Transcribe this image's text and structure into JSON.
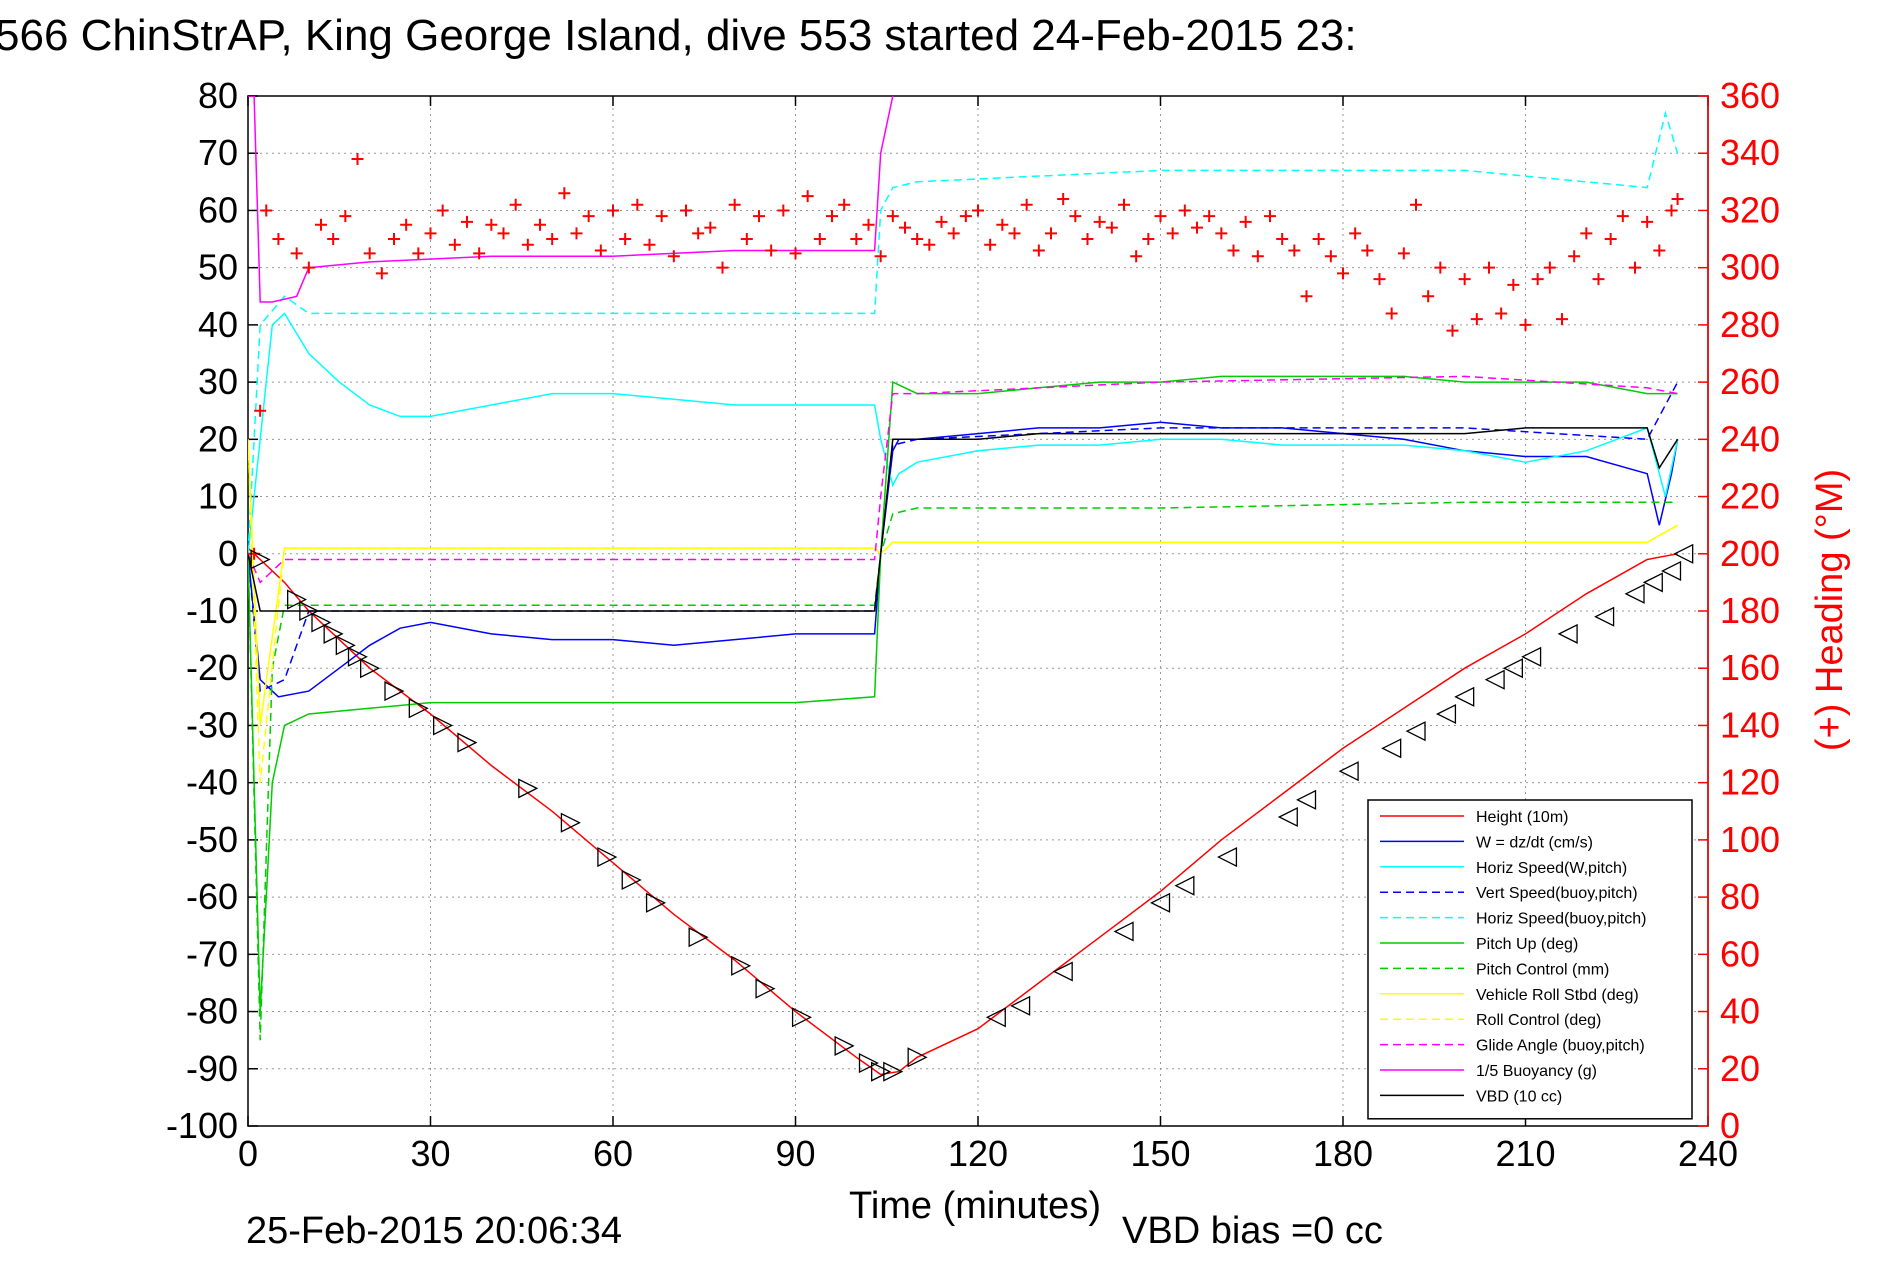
{
  "chart_data": {
    "type": "line",
    "title": "566 ChinStrAP, King George Island, dive 553 started 24-Feb-2015 23:",
    "xlabel": "Time (minutes)",
    "ylabel": "",
    "y2label": "(+) Heading (°M)",
    "xlim": [
      0,
      240
    ],
    "ylim": [
      -100,
      80
    ],
    "y2lim": [
      0,
      360
    ],
    "xticks": [
      "0",
      "30",
      "60",
      "90",
      "120",
      "150",
      "180",
      "210",
      "240"
    ],
    "yticks": [
      "80",
      "70",
      "60",
      "50",
      "40",
      "30",
      "20",
      "10",
      "0",
      "-10",
      "-20",
      "-30",
      "-40",
      "-50",
      "-60",
      "-70",
      "-80",
      "-90",
      "-100"
    ],
    "y2ticks": [
      "360",
      "340",
      "320",
      "300",
      "280",
      "260",
      "240",
      "220",
      "200",
      "180",
      "160",
      "140",
      "120",
      "100",
      "80",
      "60",
      "40",
      "20",
      "0"
    ],
    "grid": true,
    "legend_position": "bottom-right",
    "footer_left": "25-Feb-2015 20:06:34",
    "footer_right": "VBD bias =0 cc",
    "colors": {
      "red": "#ff0000",
      "blue": "#0000ff",
      "cyan": "#00ffff",
      "green": "#00cc00",
      "yellow": "#ffff00",
      "magenta": "#ff00ff",
      "black": "#000000"
    },
    "series": [
      {
        "name": "Height (10m)",
        "color": "#ff0000",
        "dash": "solid",
        "axis": "left",
        "x": [
          0,
          2,
          6,
          10,
          20,
          30,
          40,
          50,
          60,
          70,
          80,
          90,
          100,
          104,
          107,
          110,
          120,
          130,
          140,
          150,
          160,
          170,
          180,
          190,
          200,
          210,
          220,
          230,
          235
        ],
        "y": [
          1,
          -1,
          -5,
          -10,
          -20,
          -28,
          -37,
          -45,
          -54,
          -63,
          -71,
          -80,
          -88,
          -91,
          -90.5,
          -88,
          -83,
          -75,
          -67,
          -59,
          -50,
          -42,
          -34,
          -27,
          -20,
          -14,
          -7,
          -1,
          0
        ]
      },
      {
        "name": "W = dz/dt (cm/s)",
        "color": "#0000ff",
        "dash": "solid",
        "axis": "left",
        "x": [
          0,
          2,
          5,
          10,
          15,
          20,
          25,
          30,
          40,
          50,
          60,
          70,
          80,
          90,
          103,
          104,
          106,
          107,
          110,
          120,
          130,
          140,
          150,
          160,
          170,
          180,
          190,
          200,
          210,
          220,
          230,
          232,
          234,
          235
        ],
        "y": [
          0,
          -22,
          -25,
          -24,
          -20,
          -16,
          -13,
          -12,
          -14,
          -15,
          -15,
          -16,
          -15,
          -14,
          -14,
          0,
          18,
          20,
          20,
          21,
          22,
          22,
          23,
          22,
          22,
          21,
          20,
          18,
          17,
          17,
          14,
          5,
          14,
          20
        ]
      },
      {
        "name": "Horiz Speed(W,pitch)",
        "color": "#00ffff",
        "dash": "solid",
        "axis": "left",
        "x": [
          0,
          2,
          4,
          6,
          10,
          15,
          20,
          25,
          30,
          40,
          50,
          60,
          70,
          80,
          90,
          100,
          103,
          104,
          106,
          107,
          110,
          120,
          130,
          140,
          150,
          160,
          170,
          180,
          190,
          200,
          210,
          220,
          230,
          233,
          235
        ],
        "y": [
          0,
          20,
          40,
          42,
          35,
          30,
          26,
          24,
          24,
          26,
          28,
          28,
          27,
          26,
          26,
          26,
          26,
          20,
          12,
          14,
          16,
          18,
          19,
          19,
          20,
          20,
          19,
          19,
          19,
          18,
          16,
          18,
          22,
          10,
          20
        ]
      },
      {
        "name": "Vert Speed(buoy,pitch)",
        "color": "#0000ff",
        "dash": "dashed",
        "axis": "left",
        "x": [
          0,
          2,
          6,
          10,
          50,
          90,
          103,
          104,
          106,
          110,
          150,
          200,
          230,
          235
        ],
        "y": [
          0,
          -24,
          -22,
          -10,
          -10,
          -10,
          -10,
          0,
          19,
          20,
          22,
          22,
          20,
          30
        ]
      },
      {
        "name": "Horiz Speed(buoy,pitch)",
        "color": "#00ffff",
        "dash": "dashed",
        "axis": "left",
        "x": [
          0,
          2,
          6,
          10,
          50,
          90,
          103,
          104,
          106,
          110,
          150,
          200,
          230,
          233,
          235
        ],
        "y": [
          0,
          40,
          45,
          42,
          42,
          42,
          42,
          60,
          64,
          65,
          67,
          67,
          64,
          77,
          70
        ]
      },
      {
        "name": "Pitch Up (deg)",
        "color": "#00cc00",
        "dash": "solid",
        "axis": "left",
        "x": [
          0,
          2,
          4,
          6,
          10,
          20,
          30,
          40,
          50,
          60,
          70,
          80,
          90,
          103,
          104,
          106,
          110,
          120,
          130,
          140,
          150,
          160,
          170,
          180,
          190,
          200,
          210,
          220,
          230,
          235
        ],
        "y": [
          0,
          -80,
          -40,
          -30,
          -28,
          -27,
          -26,
          -26,
          -26,
          -26,
          -26,
          -26,
          -26,
          -25,
          0,
          30,
          28,
          28,
          29,
          30,
          30,
          31,
          31,
          31,
          31,
          30,
          30,
          30,
          28,
          28
        ]
      },
      {
        "name": "Pitch Control (mm)",
        "color": "#00cc00",
        "dash": "dashed",
        "axis": "left",
        "x": [
          0,
          2,
          4,
          6,
          10,
          50,
          103,
          104,
          106,
          110,
          150,
          200,
          230,
          235
        ],
        "y": [
          0,
          -85,
          -20,
          -9,
          -9,
          -9,
          -9,
          0,
          7,
          8,
          8,
          9,
          9,
          9
        ]
      },
      {
        "name": "Vehicle Roll Stbd (deg)",
        "color": "#ffff00",
        "dash": "solid",
        "axis": "left",
        "x": [
          0,
          2,
          6,
          10,
          50,
          90,
          103,
          104,
          106,
          110,
          150,
          200,
          230,
          235
        ],
        "y": [
          20,
          -30,
          1,
          1,
          1,
          1,
          1,
          0,
          2,
          2,
          2,
          2,
          2,
          5
        ]
      },
      {
        "name": "Roll Control (deg)",
        "color": "#ffff00",
        "dash": "dashed",
        "axis": "left",
        "x": [
          0,
          2,
          6,
          10,
          50,
          90,
          103,
          104,
          106,
          110,
          150,
          200,
          230,
          235
        ],
        "y": [
          20,
          -40,
          1,
          1,
          1,
          1,
          1,
          0,
          2,
          2,
          2,
          2,
          2,
          5
        ]
      },
      {
        "name": "Glide Angle (buoy,pitch)",
        "color": "#ff00ff",
        "dash": "dashed",
        "axis": "left",
        "x": [
          0,
          2,
          6,
          10,
          50,
          90,
          103,
          104,
          106,
          110,
          150,
          200,
          230,
          235
        ],
        "y": [
          0,
          -5,
          -1,
          -1,
          -1,
          -1,
          -1,
          10,
          28,
          28,
          30,
          31,
          29,
          28
        ]
      },
      {
        "name": "1/5 Buoyancy (g)",
        "color": "#ff00ff",
        "dash": "solid",
        "axis": "left",
        "x": [
          0,
          1,
          2,
          4,
          8,
          10,
          20,
          40,
          60,
          80,
          100,
          103,
          104,
          106
        ],
        "y": [
          80,
          80,
          44,
          44,
          45,
          50,
          51,
          52,
          52,
          53,
          53,
          53,
          70,
          80
        ]
      },
      {
        "name": "VBD (10 cc)",
        "color": "#000000",
        "dash": "solid",
        "axis": "left",
        "x": [
          0,
          2,
          4,
          6,
          10,
          50,
          90,
          103,
          104,
          106,
          110,
          120,
          130,
          150,
          180,
          200,
          210,
          220,
          230,
          232,
          235
        ],
        "y": [
          0,
          -10,
          -10,
          -10,
          -10,
          -10,
          -10,
          -10,
          0,
          20,
          20,
          20,
          21,
          21,
          21,
          21,
          22,
          22,
          22,
          15,
          20
        ]
      },
      {
        "name": "",
        "color": "#ff0000",
        "dash": "plus",
        "axis": "right",
        "x": [
          1,
          2,
          3,
          5,
          8,
          10,
          12,
          14,
          16,
          18,
          20,
          22,
          24,
          26,
          28,
          30,
          32,
          34,
          36,
          38,
          40,
          42,
          44,
          46,
          48,
          50,
          52,
          54,
          56,
          58,
          60,
          62,
          64,
          66,
          68,
          70,
          72,
          74,
          76,
          78,
          80,
          82,
          84,
          86,
          88,
          90,
          92,
          94,
          96,
          98,
          100,
          102,
          104,
          106,
          108,
          110,
          112,
          114,
          116,
          118,
          120,
          122,
          124,
          126,
          128,
          130,
          132,
          134,
          136,
          138,
          140,
          142,
          144,
          146,
          148,
          150,
          152,
          154,
          156,
          158,
          160,
          162,
          164,
          166,
          168,
          170,
          172,
          174,
          176,
          178,
          180,
          182,
          184,
          186,
          188,
          190,
          192,
          194,
          196,
          198,
          200,
          202,
          204,
          206,
          208,
          210,
          212,
          214,
          216,
          218,
          220,
          222,
          224,
          226,
          228,
          230,
          232,
          234,
          235
        ],
        "y": [
          200,
          250,
          320,
          310,
          305,
          300,
          315,
          310,
          318,
          338,
          305,
          298,
          310,
          315,
          305,
          312,
          320,
          308,
          316,
          305,
          315,
          312,
          322,
          308,
          315,
          310,
          326,
          312,
          318,
          306,
          320,
          310,
          322,
          308,
          318,
          304,
          320,
          312,
          314,
          300,
          322,
          310,
          318,
          306,
          320,
          305,
          325,
          310,
          318,
          322,
          310,
          315,
          304,
          318,
          314,
          310,
          308,
          316,
          312,
          318,
          320,
          308,
          315,
          312,
          322,
          306,
          312,
          324,
          318,
          310,
          316,
          314,
          322,
          304,
          310,
          318,
          312,
          320,
          314,
          318,
          312,
          306,
          316,
          304,
          318,
          310,
          306,
          290,
          310,
          304,
          298,
          312,
          306,
          296,
          284,
          305,
          322,
          290,
          300,
          278,
          296,
          282,
          300,
          284,
          294,
          280,
          296,
          300,
          282,
          304,
          312,
          296,
          310,
          318,
          300,
          316,
          306,
          320,
          324
        ]
      }
    ],
    "down_markers": {
      "x": [
        2,
        8,
        10,
        12,
        14,
        16,
        18,
        20,
        24,
        28,
        32,
        36,
        46,
        53,
        59,
        63,
        67,
        74,
        81,
        85,
        91,
        98,
        102,
        104,
        106,
        110
      ],
      "y": [
        -1,
        -8,
        -10,
        -12,
        -14,
        -16,
        -18,
        -20,
        -24,
        -27,
        -30,
        -33,
        -41,
        -47,
        -53,
        -57,
        -61,
        -67,
        -72,
        -76,
        -81,
        -86,
        -89,
        -90.5,
        -90.5,
        -88
      ]
    },
    "up_markers": {
      "x": [
        123,
        127,
        134,
        144,
        150,
        154,
        161,
        171,
        174,
        181,
        188,
        192,
        197,
        200,
        205,
        208,
        211,
        217,
        223,
        228,
        231,
        234,
        236
      ],
      "y": [
        -81,
        -79,
        -73,
        -66,
        -61,
        -58,
        -53,
        -46,
        -43,
        -38,
        -34,
        -31,
        -28,
        -25,
        -22,
        -20,
        -18,
        -14,
        -11,
        -7,
        -5,
        -3,
        0
      ]
    }
  }
}
